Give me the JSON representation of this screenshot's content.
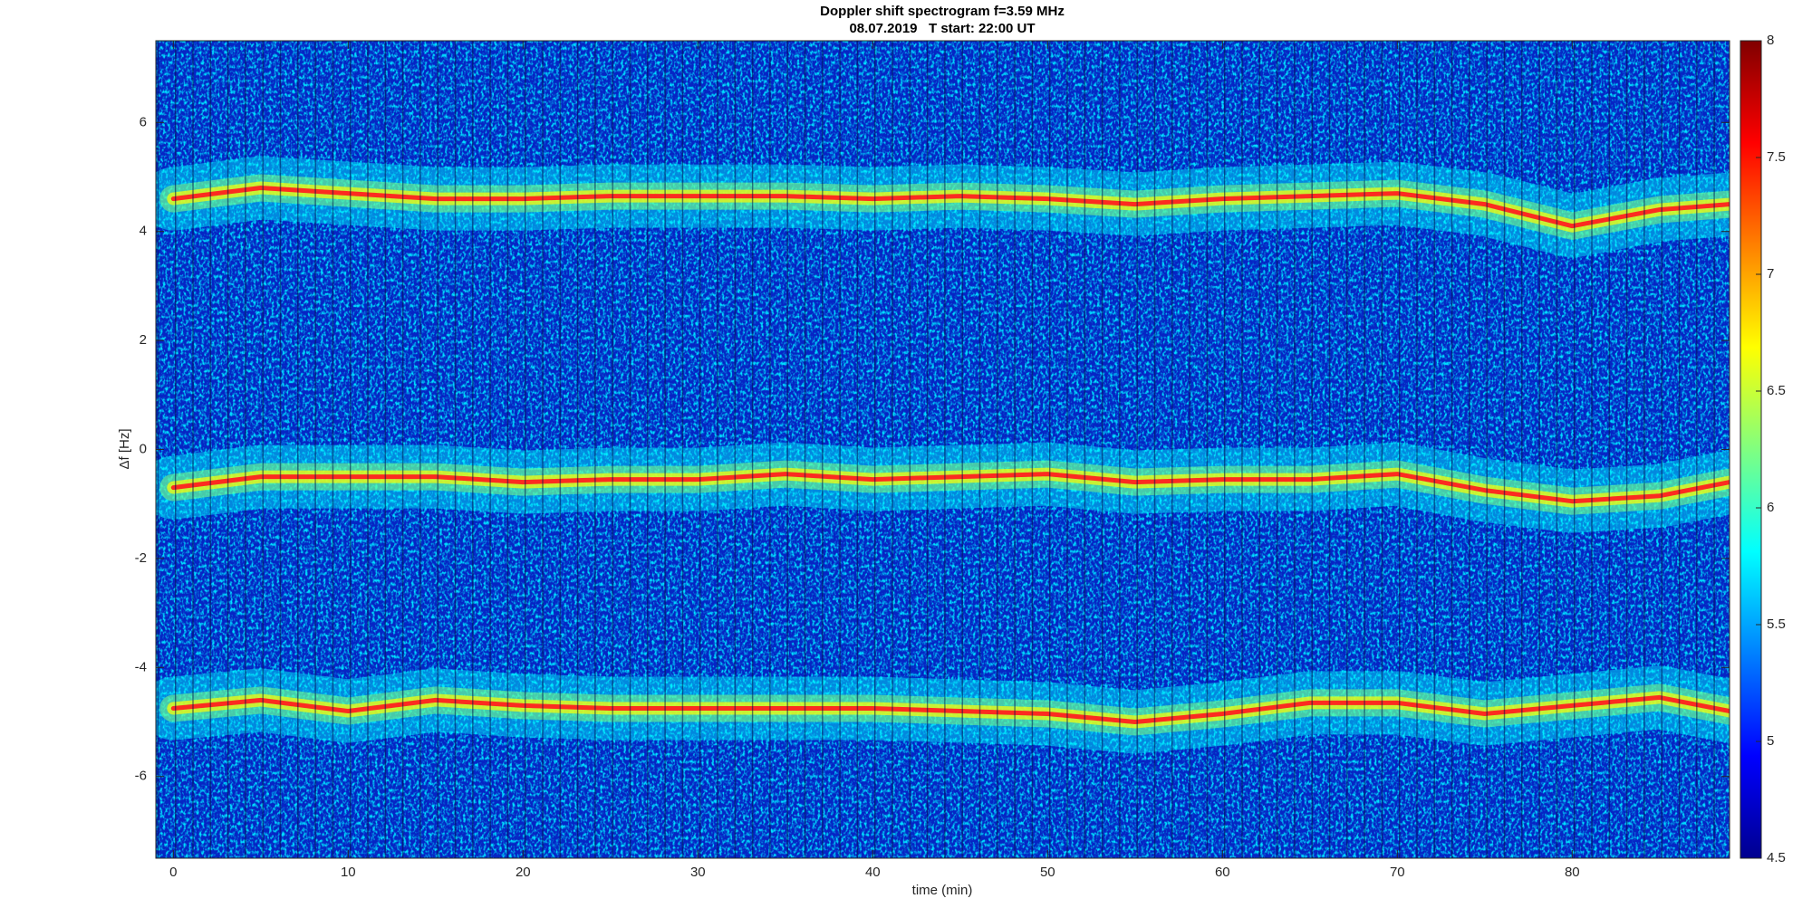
{
  "chart_data": {
    "type": "spectrogram",
    "title": "Doppler shift spectrogram f=3.59 MHz",
    "subtitle": "08.07.2019   T start: 22:00 UT",
    "x_label": "time (min)",
    "y_label": "Δf [Hz]",
    "x": [
      0,
      5,
      10,
      15,
      20,
      25,
      30,
      35,
      40,
      45,
      50,
      55,
      60,
      65,
      70,
      75,
      80,
      85,
      89
    ],
    "series": [
      {
        "color": "#ff2020",
        "values": [
          4.6,
          4.8,
          4.7,
          4.6,
          4.6,
          4.65,
          4.65,
          4.65,
          4.6,
          4.65,
          4.6,
          4.5,
          4.6,
          4.65,
          4.7,
          4.5,
          4.1,
          4.4,
          4.5
        ]
      },
      {
        "color": "#ff2020",
        "values": [
          -0.7,
          -0.5,
          -0.5,
          -0.5,
          -0.6,
          -0.55,
          -0.55,
          -0.45,
          -0.55,
          -0.5,
          -0.45,
          -0.6,
          -0.55,
          -0.55,
          -0.45,
          -0.75,
          -0.95,
          -0.85,
          -0.6
        ]
      },
      {
        "color": "#ff2020",
        "values": [
          -4.75,
          -4.6,
          -4.8,
          -4.6,
          -4.7,
          -4.75,
          -4.75,
          -4.75,
          -4.75,
          -4.8,
          -4.85,
          -5.0,
          -4.85,
          -4.65,
          -4.65,
          -4.85,
          -4.7,
          -4.55,
          -4.8
        ]
      }
    ],
    "xlim": [
      -1,
      89
    ],
    "xticks": [
      0,
      10,
      20,
      30,
      40,
      50,
      60,
      70,
      80
    ],
    "ylim": [
      -7.5,
      7.5
    ],
    "yticks": [
      -6,
      -4,
      -2,
      0,
      2,
      4,
      6
    ],
    "zlim": [
      4.5,
      8
    ],
    "zticks": [
      4.5,
      5,
      5.5,
      6,
      6.5,
      7,
      7.5,
      8
    ],
    "colormap": [
      "#00008f",
      "#0000ff",
      "#0080ff",
      "#00ffff",
      "#80ff80",
      "#ffff00",
      "#ff8000",
      "#ff0000",
      "#800000"
    ]
  }
}
